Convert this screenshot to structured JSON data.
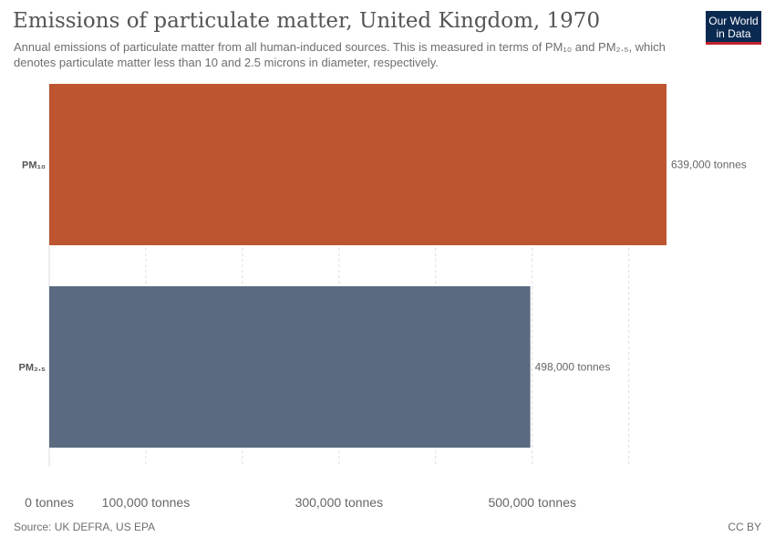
{
  "header": {
    "title": "Emissions of particulate matter, United Kingdom, 1970",
    "subtitle": "Annual emissions of particulate matter from all human-induced sources. This is measured in terms of PM₁₀ and PM₂.₅, which denotes particulate matter less than 10 and 2.5 microns in diameter, respectively."
  },
  "logo": {
    "line1": "Our World",
    "line2": "in Data"
  },
  "footer": {
    "source": "Source: UK DEFRA, US EPA",
    "license": "CC BY"
  },
  "colors": {
    "pm10": "#bd5530",
    "pm25": "#5a6a80",
    "grid": "#dddddd"
  },
  "chart_data": {
    "type": "bar",
    "orientation": "horizontal",
    "title": "Emissions of particulate matter, United Kingdom, 1970",
    "categories": [
      "PM₁₀",
      "PM₂.₅"
    ],
    "values": [
      639000,
      498000
    ],
    "value_labels": [
      "639,000 tonnes",
      "498,000 tonnes"
    ],
    "unit": "tonnes",
    "xlim": [
      0,
      639000
    ],
    "xticks": [
      {
        "value": 0,
        "label": "0 tonnes"
      },
      {
        "value": 100000,
        "label": "100,000 tonnes"
      },
      {
        "value": 300000,
        "label": "300,000 tonnes"
      },
      {
        "value": 500000,
        "label": "500,000 tonnes"
      }
    ],
    "gridlines": [
      0,
      100000,
      200000,
      300000,
      400000,
      500000,
      600000
    ],
    "grid": true
  }
}
